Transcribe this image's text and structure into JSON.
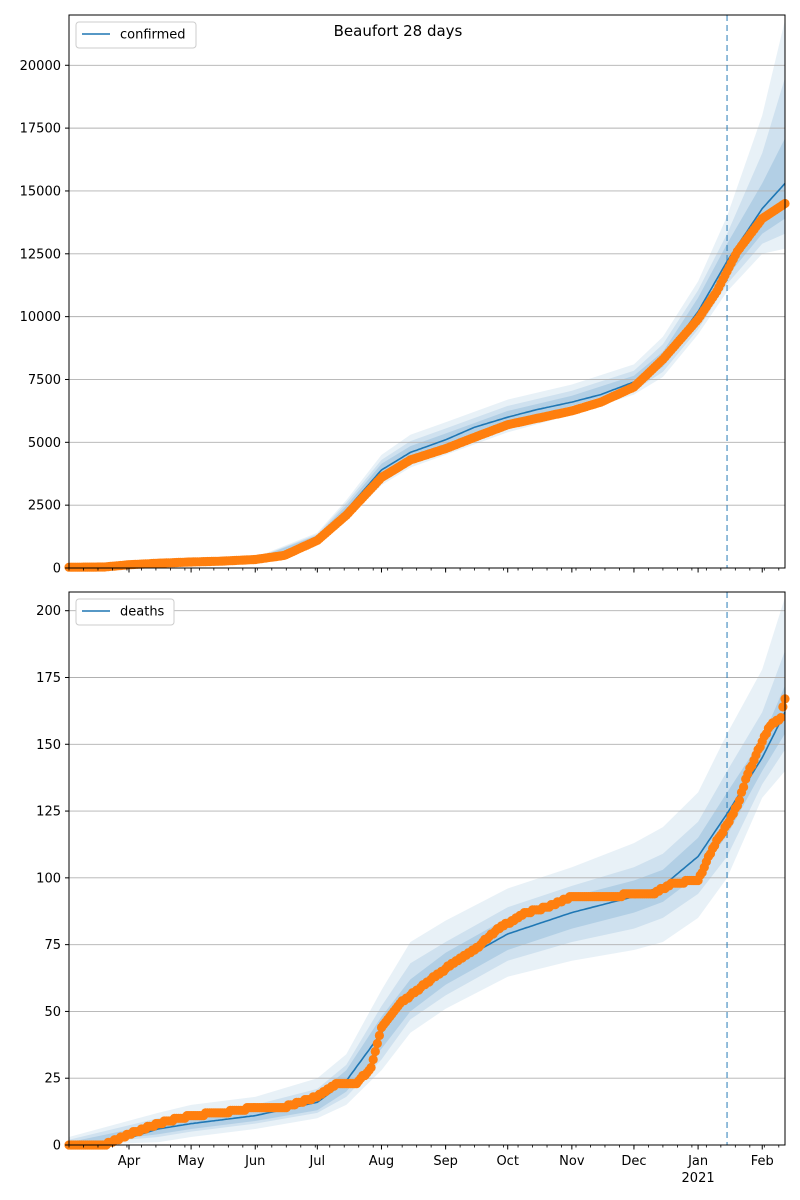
{
  "title": "Beaufort 28 days",
  "x_ticks": [
    {
      "date": "2020-04-01",
      "label": "Apr"
    },
    {
      "date": "2020-05-01",
      "label": "May"
    },
    {
      "date": "2020-06-01",
      "label": "Jun"
    },
    {
      "date": "2020-07-01",
      "label": "Jul"
    },
    {
      "date": "2020-08-01",
      "label": "Aug"
    },
    {
      "date": "2020-09-01",
      "label": "Sep"
    },
    {
      "date": "2020-10-01",
      "label": "Oct"
    },
    {
      "date": "2020-11-01",
      "label": "Nov"
    },
    {
      "date": "2020-12-01",
      "label": "Dec"
    },
    {
      "date": "2021-01-01",
      "label": "Jan",
      "sublabel": "2021"
    },
    {
      "date": "2021-02-01",
      "label": "Feb"
    }
  ],
  "colors": {
    "fit_line": "#1f77b4",
    "observed": "#ff7f0e",
    "band": "#1f77b4",
    "forecast_line": "#1f77b4",
    "grid": "#b0b0b0"
  },
  "chart_data": [
    {
      "type": "line",
      "legend": "confirmed",
      "legend_position": "top-left",
      "grid": "horizontal",
      "xlim": [
        "2020-03-03",
        "2021-02-12"
      ],
      "ylim": [
        0,
        22000
      ],
      "y_ticks": [
        0,
        2500,
        5000,
        7500,
        10000,
        12500,
        15000,
        17500,
        20000
      ],
      "forecast_start": "2021-01-15",
      "fit_line": {
        "name": "confirmed",
        "x": [
          "2020-03-03",
          "2020-03-20",
          "2020-04-01",
          "2020-04-15",
          "2020-05-01",
          "2020-05-15",
          "2020-06-01",
          "2020-06-15",
          "2020-07-01",
          "2020-07-15",
          "2020-08-01",
          "2020-08-15",
          "2020-09-01",
          "2020-09-15",
          "2020-10-01",
          "2020-10-15",
          "2020-11-01",
          "2020-11-15",
          "2020-12-01",
          "2020-12-15",
          "2021-01-01",
          "2021-01-15",
          "2021-02-01",
          "2021-02-12"
        ],
        "y": [
          0,
          20,
          120,
          200,
          250,
          290,
          350,
          520,
          1200,
          2300,
          3900,
          4600,
          5100,
          5600,
          6000,
          6300,
          6600,
          6900,
          7400,
          8300,
          10200,
          12200,
          14300,
          15300
        ]
      },
      "bands": [
        {
          "x": [
            "2020-03-03",
            "2020-04-15",
            "2020-06-01",
            "2020-07-01",
            "2020-07-15",
            "2020-08-01",
            "2020-08-15",
            "2020-09-01",
            "2020-10-01",
            "2020-11-01",
            "2020-12-01",
            "2020-12-15",
            "2021-01-01",
            "2021-01-15",
            "2021-02-01",
            "2021-02-12"
          ],
          "lower": [
            0,
            150,
            300,
            1000,
            1900,
            3300,
            4000,
            4500,
            5400,
            6100,
            6900,
            7600,
            9300,
            11000,
            12500,
            12700
          ],
          "upper": [
            100,
            250,
            420,
            1400,
            2700,
            4500,
            5300,
            5800,
            6700,
            7300,
            8100,
            9200,
            11400,
            14000,
            18000,
            21800
          ]
        },
        {
          "x": [
            "2020-03-03",
            "2020-04-15",
            "2020-06-01",
            "2020-07-01",
            "2020-07-15",
            "2020-08-01",
            "2020-08-15",
            "2020-09-01",
            "2020-10-01",
            "2020-11-01",
            "2020-12-01",
            "2020-12-15",
            "2021-01-01",
            "2021-01-15",
            "2021-02-01",
            "2021-02-12"
          ],
          "lower": [
            0,
            170,
            320,
            1050,
            2000,
            3450,
            4200,
            4700,
            5600,
            6300,
            7050,
            7800,
            9500,
            11300,
            12900,
            13300
          ],
          "upper": [
            80,
            230,
            390,
            1350,
            2600,
            4300,
            5050,
            5550,
            6450,
            7050,
            7850,
            8900,
            11050,
            13300,
            16500,
            19500
          ]
        },
        {
          "x": [
            "2020-03-03",
            "2020-04-15",
            "2020-06-01",
            "2020-07-01",
            "2020-07-15",
            "2020-08-01",
            "2020-08-15",
            "2020-09-01",
            "2020-10-01",
            "2020-11-01",
            "2020-12-01",
            "2020-12-15",
            "2021-01-01",
            "2021-01-15",
            "2021-02-01",
            "2021-02-12"
          ],
          "lower": [
            0,
            185,
            335,
            1100,
            2120,
            3600,
            4350,
            4850,
            5780,
            6450,
            7200,
            8000,
            9700,
            11600,
            13300,
            13900
          ],
          "upper": [
            60,
            215,
            370,
            1300,
            2480,
            4150,
            4850,
            5350,
            6250,
            6850,
            7650,
            8600,
            10750,
            12900,
            15300,
            17100
          ]
        }
      ],
      "observed": {
        "name": "observed",
        "x": [
          "2020-03-03",
          "2020-03-20",
          "2020-04-01",
          "2020-04-15",
          "2020-05-01",
          "2020-05-15",
          "2020-06-01",
          "2020-06-15",
          "2020-07-01",
          "2020-07-15",
          "2020-08-01",
          "2020-08-15",
          "2020-09-01",
          "2020-09-15",
          "2020-10-01",
          "2020-10-15",
          "2020-11-01",
          "2020-11-15",
          "2020-12-01",
          "2020-12-15",
          "2021-01-01",
          "2021-01-10",
          "2021-01-15",
          "2021-01-20",
          "2021-02-01",
          "2021-02-12"
        ],
        "y": [
          30,
          40,
          130,
          190,
          240,
          270,
          340,
          500,
          1100,
          2100,
          3600,
          4300,
          4750,
          5200,
          5700,
          5950,
          6250,
          6600,
          7200,
          8300,
          9900,
          11000,
          11800,
          12600,
          13900,
          14500
        ]
      }
    },
    {
      "type": "line",
      "legend": "deaths",
      "legend_position": "top-left",
      "grid": "horizontal",
      "xlim": [
        "2020-03-03",
        "2021-02-12"
      ],
      "ylim": [
        0,
        207
      ],
      "y_ticks": [
        0,
        25,
        50,
        75,
        100,
        125,
        150,
        175,
        200
      ],
      "forecast_start": "2021-01-15",
      "fit_line": {
        "name": "deaths",
        "x": [
          "2020-03-03",
          "2020-03-25",
          "2020-04-15",
          "2020-05-01",
          "2020-06-01",
          "2020-07-01",
          "2020-07-15",
          "2020-08-01",
          "2020-08-15",
          "2020-09-01",
          "2020-10-01",
          "2020-11-01",
          "2020-12-01",
          "2020-12-15",
          "2021-01-01",
          "2021-01-15",
          "2021-02-01",
          "2021-02-12"
        ],
        "y": [
          0,
          1,
          6,
          8,
          11,
          16,
          24,
          42,
          56,
          66,
          79,
          87,
          93,
          97,
          108,
          124,
          145,
          162
        ]
      },
      "bands": [
        {
          "x": [
            "2020-03-03",
            "2020-04-15",
            "2020-05-01",
            "2020-06-01",
            "2020-07-01",
            "2020-07-15",
            "2020-08-01",
            "2020-08-15",
            "2020-09-01",
            "2020-10-01",
            "2020-11-01",
            "2020-12-01",
            "2020-12-15",
            "2021-01-01",
            "2021-01-15",
            "2021-02-01",
            "2021-02-12"
          ],
          "lower": [
            0,
            1,
            3,
            6,
            10,
            15,
            28,
            42,
            51,
            63,
            69,
            73,
            76,
            85,
            100,
            130,
            140
          ],
          "upper": [
            3,
            12,
            15,
            18,
            25,
            34,
            58,
            76,
            84,
            96,
            104,
            113,
            119,
            132,
            154,
            178,
            205
          ]
        },
        {
          "x": [
            "2020-03-03",
            "2020-04-15",
            "2020-05-01",
            "2020-06-01",
            "2020-07-01",
            "2020-07-15",
            "2020-08-01",
            "2020-08-15",
            "2020-09-01",
            "2020-10-01",
            "2020-11-01",
            "2020-12-01",
            "2020-12-15",
            "2021-01-01",
            "2021-01-15",
            "2021-02-01",
            "2021-02-12"
          ],
          "lower": [
            0,
            3,
            5,
            8,
            12,
            18,
            32,
            47,
            56,
            69,
            76,
            81,
            85,
            94,
            108,
            135,
            148
          ],
          "upper": [
            2,
            10,
            12,
            15,
            21,
            30,
            52,
            68,
            76,
            89,
            97,
            104,
            109,
            121,
            140,
            162,
            185
          ]
        },
        {
          "x": [
            "2020-03-03",
            "2020-04-15",
            "2020-05-01",
            "2020-06-01",
            "2020-07-01",
            "2020-07-15",
            "2020-08-01",
            "2020-08-15",
            "2020-09-01",
            "2020-10-01",
            "2020-11-01",
            "2020-12-01",
            "2020-12-15",
            "2021-01-01",
            "2021-01-15",
            "2021-02-01",
            "2021-02-12"
          ],
          "lower": [
            0,
            4,
            6,
            9,
            13,
            20,
            36,
            50,
            60,
            73,
            81,
            87,
            91,
            101,
            116,
            140,
            154
          ],
          "upper": [
            1,
            8,
            10,
            13,
            19,
            28,
            48,
            62,
            72,
            85,
            93,
            99,
            103,
            115,
            132,
            152,
            172
          ]
        }
      ],
      "observed": {
        "name": "observed",
        "x": [
          "2020-03-03",
          "2020-03-20",
          "2020-04-01",
          "2020-04-15",
          "2020-05-01",
          "2020-05-15",
          "2020-06-01",
          "2020-06-15",
          "2020-07-01",
          "2020-07-10",
          "2020-07-20",
          "2020-07-27",
          "2020-08-01",
          "2020-08-10",
          "2020-08-20",
          "2020-09-01",
          "2020-09-15",
          "2020-09-25",
          "2020-10-01",
          "2020-10-10",
          "2020-10-20",
          "2020-11-01",
          "2020-11-20",
          "2020-12-01",
          "2020-12-10",
          "2020-12-20",
          "2021-01-01",
          "2021-01-08",
          "2021-01-15",
          "2021-01-20",
          "2021-01-25",
          "2021-02-01",
          "2021-02-05",
          "2021-02-10",
          "2021-02-12"
        ],
        "y": [
          0,
          0,
          4,
          8,
          11,
          12,
          14,
          14,
          18,
          23,
          23,
          29,
          44,
          53,
          59,
          66,
          73,
          80,
          83,
          87,
          89,
          93,
          93,
          94,
          94,
          98,
          99,
          111,
          120,
          127,
          139,
          151,
          157,
          160,
          167
        ]
      }
    }
  ]
}
